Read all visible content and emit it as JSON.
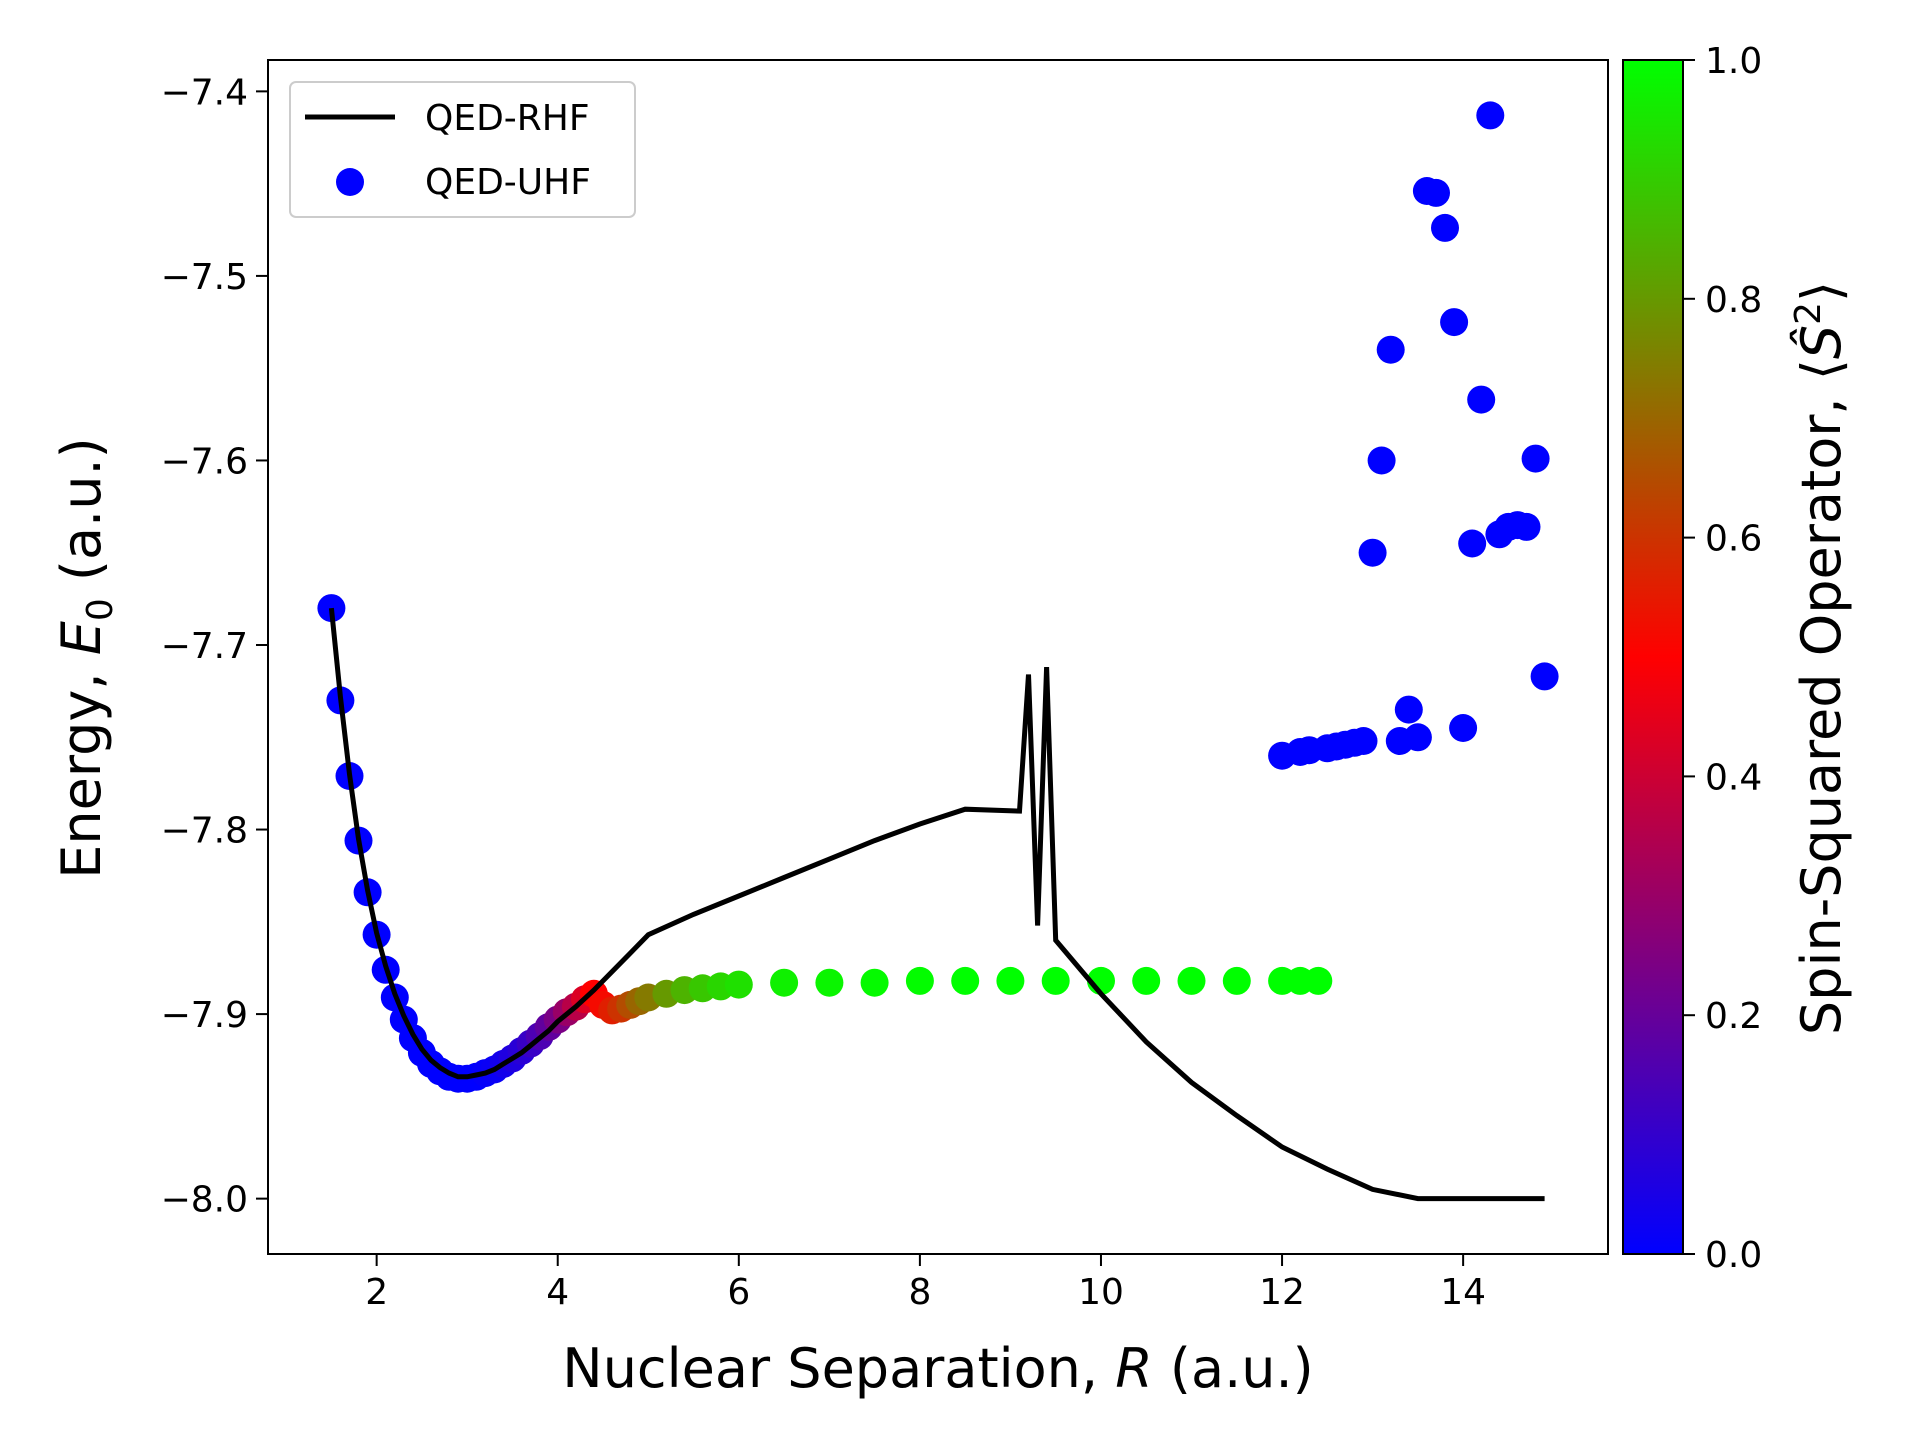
{
  "chart_data": {
    "type": "line+scatter",
    "x_axis": {
      "label": "Nuclear Separation, ",
      "label_symbol": "R",
      "label_unit": " (a.u.)",
      "range": [
        0.8,
        15.6
      ],
      "ticks": [
        2,
        4,
        6,
        8,
        10,
        12,
        14
      ]
    },
    "y_axis": {
      "label": "Energy, ",
      "label_symbol": "E",
      "label_sub": "0",
      "label_unit": " (a.u.)",
      "range": [
        -8.03,
        -7.383
      ],
      "ticks": [
        -8.0,
        -7.9,
        -7.8,
        -7.7,
        -7.6,
        -7.5,
        -7.4
      ],
      "tick_labels": [
        "−8.0",
        "−7.9",
        "−7.8",
        "−7.7",
        "−7.6",
        "−7.5",
        "−7.4"
      ]
    },
    "colorbar": {
      "label_prefix": "Spin-Squared Operator, ⟨",
      "label_symbol": "Ŝ",
      "label_sup": "2",
      "label_suffix": "⟩",
      "range": [
        0.0,
        1.0
      ],
      "ticks": [
        0.0,
        0.2,
        0.4,
        0.6,
        0.8,
        1.0
      ],
      "tick_labels": [
        "0.0",
        "0.2",
        "0.4",
        "0.6",
        "0.8",
        "1.0"
      ],
      "colormap": [
        "#0000ff",
        "#ff0000",
        "#00ff00"
      ]
    },
    "legend": {
      "placement": "top-left",
      "entries": [
        {
          "label": "QED-RHF",
          "marker": "line",
          "color": "#000000"
        },
        {
          "label": "QED-UHF",
          "marker": "dot",
          "color": "#0000ff"
        }
      ]
    },
    "series": [
      {
        "name": "QED-RHF",
        "kind": "line",
        "color": "#000000",
        "x": [
          1.5,
          1.6,
          1.7,
          1.8,
          1.9,
          2.0,
          2.1,
          2.2,
          2.3,
          2.4,
          2.5,
          2.6,
          2.7,
          2.8,
          2.9,
          3.0,
          3.1,
          3.2,
          3.3,
          3.4,
          3.5,
          3.6,
          3.7,
          3.8,
          3.9,
          4.0,
          4.2,
          4.4,
          4.6,
          4.8,
          5.0,
          5.5,
          6.0,
          6.5,
          7.0,
          7.5,
          8.0,
          8.5,
          9.1,
          9.2,
          9.3,
          9.4,
          9.5,
          10.0,
          10.5,
          11.0,
          11.5,
          12.0,
          12.5,
          13.0,
          13.5,
          14.0,
          14.5,
          14.9
        ],
        "y": [
          -7.68,
          -7.728,
          -7.77,
          -7.805,
          -7.833,
          -7.856,
          -7.874,
          -7.889,
          -7.901,
          -7.911,
          -7.919,
          -7.925,
          -7.929,
          -7.932,
          -7.934,
          -7.934,
          -7.933,
          -7.932,
          -7.93,
          -7.927,
          -7.924,
          -7.921,
          -7.917,
          -7.913,
          -7.909,
          -7.904,
          -7.896,
          -7.887,
          -7.877,
          -7.867,
          -7.857,
          -7.846,
          -7.836,
          -7.826,
          -7.816,
          -7.806,
          -7.797,
          -7.789,
          -7.79,
          -7.716,
          -7.852,
          -7.712,
          -7.86,
          -7.889,
          -7.915,
          -7.937,
          -7.955,
          -7.972,
          -7.984,
          -7.995,
          -8.0,
          -8.0,
          -8.0,
          -8.0
        ]
      },
      {
        "name": "QED-UHF",
        "kind": "scatter",
        "value_name": "S2",
        "x": [
          1.5,
          1.6,
          1.7,
          1.8,
          1.9,
          2.0,
          2.1,
          2.2,
          2.3,
          2.4,
          2.5,
          2.6,
          2.7,
          2.8,
          2.9,
          3.0,
          3.1,
          3.2,
          3.3,
          3.4,
          3.5,
          3.6,
          3.7,
          3.8,
          3.9,
          4.0,
          4.1,
          4.2,
          4.3,
          4.4,
          4.5,
          4.6,
          4.7,
          4.8,
          4.9,
          5.0,
          5.2,
          5.4,
          5.6,
          5.8,
          6.0,
          6.5,
          7.0,
          7.5,
          8.0,
          8.5,
          9.0,
          9.5,
          10.0,
          10.5,
          11.0,
          11.5,
          12.0,
          12.2,
          12.4,
          12.0,
          12.2,
          12.3,
          12.5,
          12.6,
          12.7,
          12.8,
          12.9,
          13.0,
          13.1,
          13.2,
          13.3,
          13.4,
          13.5,
          13.6,
          13.7,
          13.8,
          13.9,
          14.0,
          14.1,
          14.2,
          14.3,
          14.4,
          14.5,
          14.6,
          14.7,
          14.8,
          14.9
        ],
        "y": [
          -7.68,
          -7.73,
          -7.771,
          -7.806,
          -7.834,
          -7.857,
          -7.876,
          -7.891,
          -7.903,
          -7.913,
          -7.921,
          -7.927,
          -7.931,
          -7.934,
          -7.935,
          -7.935,
          -7.934,
          -7.932,
          -7.93,
          -7.927,
          -7.924,
          -7.92,
          -7.916,
          -7.912,
          -7.907,
          -7.903,
          -7.899,
          -7.896,
          -7.892,
          -7.889,
          -7.895,
          -7.898,
          -7.897,
          -7.895,
          -7.893,
          -7.891,
          -7.889,
          -7.887,
          -7.886,
          -7.885,
          -7.884,
          -7.883,
          -7.883,
          -7.883,
          -7.882,
          -7.882,
          -7.882,
          -7.882,
          -7.882,
          -7.882,
          -7.882,
          -7.882,
          -7.882,
          -7.882,
          -7.882,
          -7.76,
          -7.758,
          -7.757,
          -7.756,
          -7.755,
          -7.754,
          -7.753,
          -7.752,
          -7.65,
          -7.6,
          -7.54,
          -7.752,
          -7.735,
          -7.75,
          -7.454,
          -7.455,
          -7.474,
          -7.525,
          -7.745,
          -7.645,
          -7.567,
          -7.413,
          -7.64,
          -7.636,
          -7.635,
          -7.636,
          -7.599,
          -7.717
        ],
        "color_values": [
          0.0,
          0.0,
          0.0,
          0.0,
          0.0,
          0.0,
          0.0,
          0.0,
          0.0,
          0.0,
          0.0,
          0.0,
          0.0,
          0.0,
          0.0,
          0.0,
          0.0,
          0.01,
          0.02,
          0.04,
          0.06,
          0.08,
          0.11,
          0.15,
          0.19,
          0.24,
          0.3,
          0.36,
          0.43,
          0.5,
          0.52,
          0.56,
          0.6,
          0.65,
          0.7,
          0.74,
          0.8,
          0.85,
          0.89,
          0.92,
          0.94,
          0.97,
          0.98,
          0.99,
          0.995,
          1.0,
          1.0,
          1.0,
          1.0,
          1.0,
          1.0,
          1.0,
          1.0,
          1.0,
          1.0,
          0.0,
          0.0,
          0.0,
          0.0,
          0.0,
          0.0,
          0.0,
          0.0,
          0.0,
          0.0,
          0.0,
          0.0,
          0.0,
          0.0,
          0.0,
          0.0,
          0.0,
          0.0,
          0.0,
          0.0,
          0.0,
          0.0,
          0.0,
          0.0,
          0.0,
          0.0,
          0.0,
          0.0
        ]
      }
    ]
  }
}
